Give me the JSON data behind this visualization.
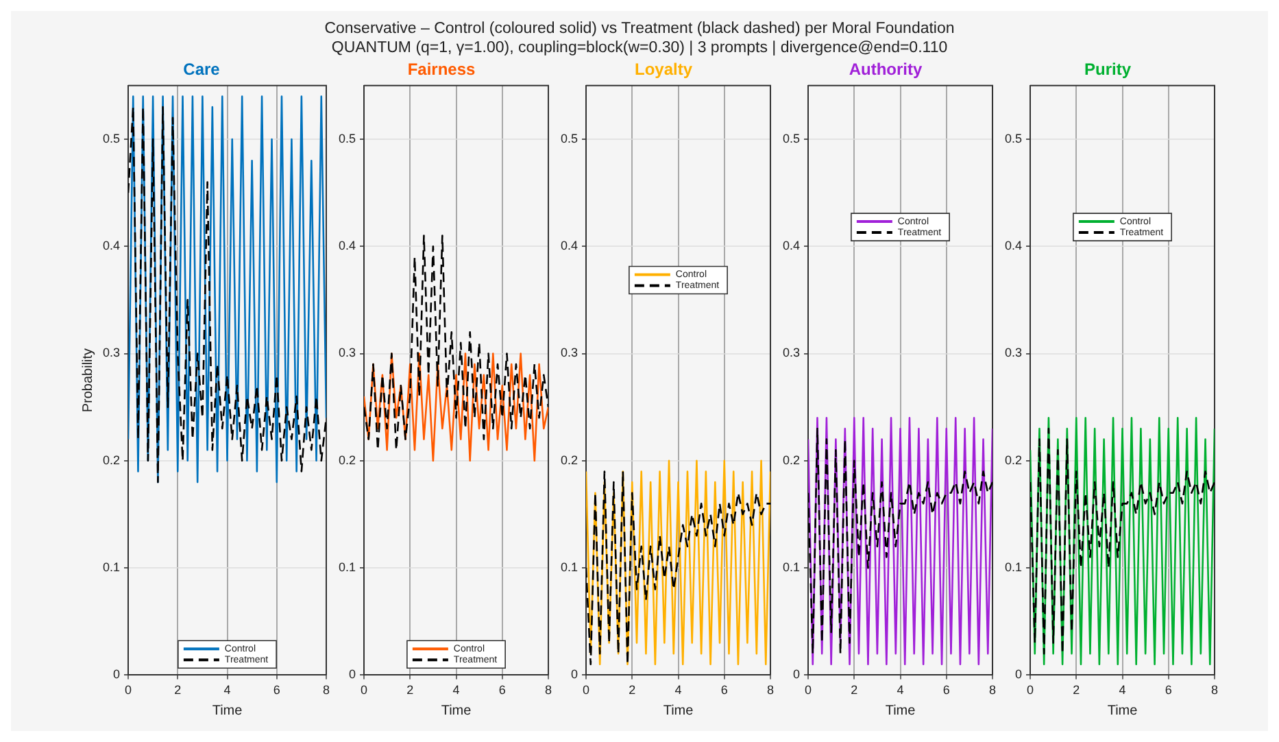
{
  "chart_data": [
    {
      "type": "line",
      "title": "Care",
      "xlabel": "Time",
      "ylabel": "Probability",
      "annotations": [
        "Conservative – Control (coloured solid) vs Treatment (black dashed) per Moral Foundation",
        "QUANTUM  (q=1, γ=1.00), coupling=block(w=0.30) | 3 prompts | divergence@end=0.110"
      ],
      "x": [
        0,
        0.2,
        0.4,
        0.6,
        0.8,
        1,
        1.2,
        1.4,
        1.6,
        1.8,
        2,
        2.2,
        2.4,
        2.6,
        2.8,
        3,
        3.2,
        3.4,
        3.6,
        3.8,
        4,
        4.2,
        4.4,
        4.6,
        4.8,
        5,
        5.2,
        5.4,
        5.6,
        5.8,
        6,
        6.2,
        6.4,
        6.6,
        6.8,
        7,
        7.2,
        7.4,
        7.6,
        7.8,
        8
      ],
      "xlim": [
        0,
        8
      ],
      "xticks": [
        0,
        2,
        4,
        6,
        8
      ],
      "ylim": [
        0,
        0.55
      ],
      "yticks": [
        0,
        0.1,
        0.2,
        0.3,
        0.4,
        0.5
      ],
      "grid": true,
      "legend": "bottom",
      "series": [
        {
          "name": "Control",
          "color": "#0072bd",
          "line_style": "solid",
          "values": [
            0.22,
            0.54,
            0.19,
            0.54,
            0.2,
            0.54,
            0.18,
            0.54,
            0.21,
            0.54,
            0.19,
            0.54,
            0.2,
            0.54,
            0.18,
            0.54,
            0.21,
            0.53,
            0.19,
            0.54,
            0.2,
            0.5,
            0.22,
            0.54,
            0.2,
            0.48,
            0.19,
            0.54,
            0.21,
            0.5,
            0.18,
            0.54,
            0.2,
            0.5,
            0.19,
            0.54,
            0.22,
            0.48,
            0.2,
            0.54,
            0.24
          ]
        },
        {
          "name": "Treatment",
          "color": "#000000",
          "line_style": "dashed",
          "values": [
            0.45,
            0.53,
            0.22,
            0.53,
            0.2,
            0.5,
            0.18,
            0.53,
            0.25,
            0.52,
            0.3,
            0.2,
            0.35,
            0.22,
            0.3,
            0.24,
            0.46,
            0.21,
            0.29,
            0.23,
            0.28,
            0.22,
            0.27,
            0.2,
            0.26,
            0.23,
            0.27,
            0.21,
            0.26,
            0.22,
            0.28,
            0.2,
            0.25,
            0.22,
            0.26,
            0.19,
            0.25,
            0.21,
            0.26,
            0.2,
            0.24
          ]
        }
      ]
    },
    {
      "type": "line",
      "title": "Fairness",
      "xlabel": "Time",
      "x": [
        0,
        0.2,
        0.4,
        0.6,
        0.8,
        1,
        1.2,
        1.4,
        1.6,
        1.8,
        2,
        2.2,
        2.4,
        2.6,
        2.8,
        3,
        3.2,
        3.4,
        3.6,
        3.8,
        4,
        4.2,
        4.4,
        4.6,
        4.8,
        5,
        5.2,
        5.4,
        5.6,
        5.8,
        6,
        6.2,
        6.4,
        6.6,
        6.8,
        7,
        7.2,
        7.4,
        7.6,
        7.8,
        8
      ],
      "xlim": [
        0,
        8
      ],
      "xticks": [
        0,
        2,
        4,
        6,
        8
      ],
      "ylim": [
        0,
        0.55
      ],
      "yticks": [
        0,
        0.1,
        0.2,
        0.3,
        0.4,
        0.5
      ],
      "grid": true,
      "legend": "bottom",
      "series": [
        {
          "name": "Control",
          "color": "#ff5a00",
          "line_style": "solid",
          "values": [
            0.26,
            0.22,
            0.29,
            0.23,
            0.28,
            0.21,
            0.3,
            0.24,
            0.27,
            0.22,
            0.29,
            0.21,
            0.3,
            0.22,
            0.28,
            0.2,
            0.29,
            0.23,
            0.27,
            0.21,
            0.28,
            0.22,
            0.3,
            0.2,
            0.29,
            0.23,
            0.28,
            0.21,
            0.3,
            0.22,
            0.27,
            0.21,
            0.29,
            0.23,
            0.3,
            0.22,
            0.28,
            0.2,
            0.29,
            0.23,
            0.25
          ]
        },
        {
          "name": "Treatment",
          "color": "#000000",
          "line_style": "dashed",
          "values": [
            0.25,
            0.22,
            0.29,
            0.21,
            0.28,
            0.23,
            0.3,
            0.21,
            0.27,
            0.22,
            0.26,
            0.39,
            0.26,
            0.41,
            0.28,
            0.4,
            0.27,
            0.41,
            0.26,
            0.32,
            0.24,
            0.31,
            0.23,
            0.32,
            0.24,
            0.31,
            0.22,
            0.3,
            0.23,
            0.29,
            0.24,
            0.3,
            0.23,
            0.29,
            0.24,
            0.28,
            0.23,
            0.29,
            0.24,
            0.28,
            0.25
          ]
        }
      ]
    },
    {
      "type": "line",
      "title": "Loyalty",
      "xlabel": "Time",
      "x": [
        0,
        0.2,
        0.4,
        0.6,
        0.8,
        1,
        1.2,
        1.4,
        1.6,
        1.8,
        2,
        2.2,
        2.4,
        2.6,
        2.8,
        3,
        3.2,
        3.4,
        3.6,
        3.8,
        4,
        4.2,
        4.4,
        4.6,
        4.8,
        5,
        5.2,
        5.4,
        5.6,
        5.8,
        6,
        6.2,
        6.4,
        6.6,
        6.8,
        7,
        7.2,
        7.4,
        7.6,
        7.8,
        8
      ],
      "xlim": [
        0,
        8
      ],
      "xticks": [
        0,
        2,
        4,
        6,
        8
      ],
      "ylim": [
        0,
        0.55
      ],
      "yticks": [
        0,
        0.1,
        0.2,
        0.3,
        0.4,
        0.5
      ],
      "grid": true,
      "legend": "center",
      "series": [
        {
          "name": "Control",
          "color": "#ffb000",
          "line_style": "solid",
          "values": [
            0.19,
            0.02,
            0.17,
            0.01,
            0.18,
            0.03,
            0.17,
            0.02,
            0.19,
            0.01,
            0.18,
            0.03,
            0.19,
            0.02,
            0.18,
            0.01,
            0.19,
            0.03,
            0.2,
            0.02,
            0.18,
            0.01,
            0.19,
            0.03,
            0.2,
            0.02,
            0.19,
            0.01,
            0.18,
            0.03,
            0.2,
            0.02,
            0.19,
            0.01,
            0.18,
            0.03,
            0.19,
            0.02,
            0.2,
            0.01,
            0.19
          ]
        },
        {
          "name": "Treatment",
          "color": "#000000",
          "line_style": "dashed",
          "values": [
            0.1,
            0.01,
            0.17,
            0.02,
            0.19,
            0.03,
            0.18,
            0.02,
            0.19,
            0.01,
            0.17,
            0.08,
            0.12,
            0.07,
            0.12,
            0.08,
            0.13,
            0.09,
            0.12,
            0.08,
            0.11,
            0.14,
            0.12,
            0.15,
            0.13,
            0.16,
            0.13,
            0.15,
            0.12,
            0.16,
            0.13,
            0.16,
            0.14,
            0.17,
            0.15,
            0.16,
            0.14,
            0.17,
            0.15,
            0.16,
            0.16
          ]
        }
      ]
    },
    {
      "type": "line",
      "title": "Authority",
      "xlabel": "Time",
      "x": [
        0,
        0.2,
        0.4,
        0.6,
        0.8,
        1,
        1.2,
        1.4,
        1.6,
        1.8,
        2,
        2.2,
        2.4,
        2.6,
        2.8,
        3,
        3.2,
        3.4,
        3.6,
        3.8,
        4,
        4.2,
        4.4,
        4.6,
        4.8,
        5,
        5.2,
        5.4,
        5.6,
        5.8,
        6,
        6.2,
        6.4,
        6.6,
        6.8,
        7,
        7.2,
        7.4,
        7.6,
        7.8,
        8
      ],
      "xlim": [
        0,
        8
      ],
      "xticks": [
        0,
        2,
        4,
        6,
        8
      ],
      "ylim": [
        0,
        0.55
      ],
      "yticks": [
        0,
        0.1,
        0.2,
        0.3,
        0.4,
        0.5
      ],
      "grid": true,
      "legend": "top",
      "series": [
        {
          "name": "Control",
          "color": "#a020d8",
          "line_style": "solid",
          "values": [
            0.22,
            0.01,
            0.24,
            0.02,
            0.24,
            0.01,
            0.22,
            0.03,
            0.23,
            0.01,
            0.24,
            0.02,
            0.24,
            0.01,
            0.23,
            0.02,
            0.22,
            0.01,
            0.24,
            0.02,
            0.23,
            0.01,
            0.24,
            0.02,
            0.23,
            0.01,
            0.22,
            0.02,
            0.24,
            0.01,
            0.23,
            0.02,
            0.24,
            0.01,
            0.23,
            0.02,
            0.24,
            0.01,
            0.22,
            0.02,
            0.23
          ]
        },
        {
          "name": "Treatment",
          "color": "#000000",
          "line_style": "dashed",
          "values": [
            0.17,
            0.02,
            0.23,
            0.03,
            0.22,
            0.04,
            0.21,
            0.02,
            0.22,
            0.03,
            0.2,
            0.11,
            0.18,
            0.1,
            0.17,
            0.12,
            0.18,
            0.11,
            0.17,
            0.12,
            0.16,
            0.16,
            0.18,
            0.15,
            0.17,
            0.16,
            0.18,
            0.15,
            0.17,
            0.16,
            0.17,
            0.17,
            0.18,
            0.16,
            0.19,
            0.17,
            0.18,
            0.16,
            0.19,
            0.17,
            0.18
          ]
        }
      ]
    },
    {
      "type": "line",
      "title": "Purity",
      "xlabel": "Time",
      "x": [
        0,
        0.2,
        0.4,
        0.6,
        0.8,
        1,
        1.2,
        1.4,
        1.6,
        1.8,
        2,
        2.2,
        2.4,
        2.6,
        2.8,
        3,
        3.2,
        3.4,
        3.6,
        3.8,
        4,
        4.2,
        4.4,
        4.6,
        4.8,
        5,
        5.2,
        5.4,
        5.6,
        5.8,
        6,
        6.2,
        6.4,
        6.6,
        6.8,
        7,
        7.2,
        7.4,
        7.6,
        7.8,
        8
      ],
      "xlim": [
        0,
        8
      ],
      "xticks": [
        0,
        2,
        4,
        6,
        8
      ],
      "ylim": [
        0,
        0.55
      ],
      "yticks": [
        0,
        0.1,
        0.2,
        0.3,
        0.4,
        0.5
      ],
      "grid": true,
      "legend": "top",
      "series": [
        {
          "name": "Control",
          "color": "#00b030",
          "line_style": "solid",
          "values": [
            0.21,
            0.02,
            0.23,
            0.01,
            0.24,
            0.02,
            0.22,
            0.01,
            0.23,
            0.02,
            0.24,
            0.01,
            0.24,
            0.02,
            0.23,
            0.01,
            0.22,
            0.02,
            0.24,
            0.01,
            0.23,
            0.02,
            0.24,
            0.01,
            0.23,
            0.02,
            0.22,
            0.01,
            0.24,
            0.02,
            0.23,
            0.01,
            0.24,
            0.02,
            0.23,
            0.01,
            0.24,
            0.02,
            0.22,
            0.01,
            0.23
          ]
        },
        {
          "name": "Treatment",
          "color": "#000000",
          "line_style": "dashed",
          "values": [
            0.18,
            0.03,
            0.22,
            0.02,
            0.23,
            0.03,
            0.21,
            0.02,
            0.22,
            0.04,
            0.19,
            0.1,
            0.17,
            0.11,
            0.18,
            0.12,
            0.17,
            0.1,
            0.18,
            0.11,
            0.16,
            0.16,
            0.17,
            0.15,
            0.18,
            0.16,
            0.17,
            0.15,
            0.18,
            0.16,
            0.17,
            0.17,
            0.18,
            0.16,
            0.19,
            0.17,
            0.18,
            0.16,
            0.19,
            0.17,
            0.18
          ]
        }
      ]
    }
  ]
}
